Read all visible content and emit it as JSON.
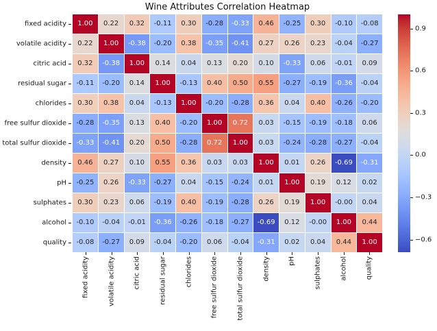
{
  "chart_data": {
    "type": "heatmap",
    "title": "Wine Attributes Correlation Heatmap",
    "labels": [
      "fixed acidity",
      "volatile acidity",
      "citric acid",
      "residual sugar",
      "chlorides",
      "free sulfur dioxide",
      "total sulfur dioxide",
      "density",
      "pH",
      "sulphates",
      "alcohol",
      "quality"
    ],
    "matrix": [
      [
        "1.00",
        "0.22",
        "0.32",
        "-0.11",
        "0.30",
        "-0.28",
        "-0.33",
        "0.46",
        "-0.25",
        "0.30",
        "-0.10",
        "-0.08"
      ],
      [
        "0.22",
        "1.00",
        "-0.38",
        "-0.20",
        "0.38",
        "-0.35",
        "-0.41",
        "0.27",
        "0.26",
        "0.23",
        "-0.04",
        "-0.27"
      ],
      [
        "0.32",
        "-0.38",
        "1.00",
        "0.14",
        "0.04",
        "0.13",
        "0.20",
        "0.10",
        "-0.33",
        "0.06",
        "-0.01",
        "0.09"
      ],
      [
        "-0.11",
        "-0.20",
        "0.14",
        "1.00",
        "-0.13",
        "0.40",
        "0.50",
        "0.55",
        "-0.27",
        "-0.19",
        "-0.36",
        "-0.04"
      ],
      [
        "0.30",
        "0.38",
        "0.04",
        "-0.13",
        "1.00",
        "-0.20",
        "-0.28",
        "0.36",
        "0.04",
        "0.40",
        "-0.26",
        "-0.20"
      ],
      [
        "-0.28",
        "-0.35",
        "0.13",
        "0.40",
        "-0.20",
        "1.00",
        "0.72",
        "0.03",
        "-0.15",
        "-0.19",
        "-0.18",
        "0.06"
      ],
      [
        "-0.33",
        "-0.41",
        "0.20",
        "0.50",
        "-0.28",
        "0.72",
        "1.00",
        "0.03",
        "-0.24",
        "-0.28",
        "-0.27",
        "-0.04"
      ],
      [
        "0.46",
        "0.27",
        "0.10",
        "0.55",
        "0.36",
        "0.03",
        "0.03",
        "1.00",
        "0.01",
        "0.26",
        "-0.69",
        "-0.31"
      ],
      [
        "-0.25",
        "0.26",
        "-0.33",
        "-0.27",
        "0.04",
        "-0.15",
        "-0.24",
        "0.01",
        "1.00",
        "0.19",
        "0.12",
        "0.02"
      ],
      [
        "0.30",
        "0.23",
        "0.06",
        "-0.19",
        "0.40",
        "-0.19",
        "-0.28",
        "0.26",
        "0.19",
        "1.00",
        "-0.00",
        "0.04"
      ],
      [
        "-0.10",
        "-0.04",
        "-0.01",
        "-0.36",
        "-0.26",
        "-0.18",
        "-0.27",
        "-0.69",
        "0.12",
        "-0.00",
        "1.00",
        "0.44"
      ],
      [
        "-0.08",
        "-0.27",
        "0.09",
        "-0.04",
        "-0.20",
        "0.06",
        "-0.04",
        "-0.31",
        "0.02",
        "0.04",
        "0.44",
        "1.00"
      ]
    ],
    "colormap": "coolwarm",
    "vmin": -0.69,
    "vmax": 1.0,
    "annotations": true,
    "annotation_format": ".2f",
    "grid_lines": "white",
    "legend_position": "right-colorbar",
    "colorbar": {
      "tick_values": [
        0.9,
        0.6,
        0.3,
        0.0,
        -0.3,
        -0.6
      ],
      "tick_labels": [
        "0.9",
        "0.6",
        "0.3",
        "0.0",
        "−0.3",
        "−0.6"
      ]
    },
    "colors": {
      "max_color": "#b40426",
      "mid_color": "#dddddd",
      "min_color": "#3b4cc0",
      "background": "#ffffff",
      "annotation_dark": "#262626",
      "annotation_light": "#ffffff",
      "axis_text": "#1a1a1a"
    }
  }
}
